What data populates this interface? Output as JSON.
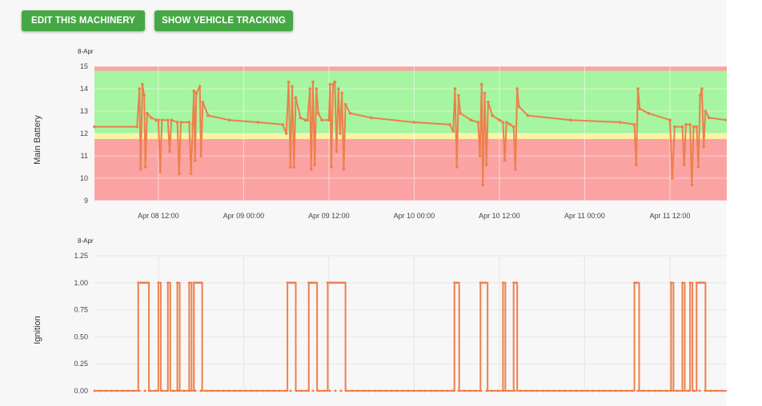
{
  "toolbar": {
    "edit_label": "EDIT THIS MACHINERY",
    "tracking_label": "SHOW VEHICLE TRACKING"
  },
  "colors": {
    "accent_button": "#45a845",
    "series": "#ee7f4c",
    "zone_good": "#a6f5a0",
    "zone_bad": "#fba3a3",
    "zone_warn": "#fbf3a4"
  },
  "chart_data": [
    {
      "type": "line",
      "title": "",
      "date_label": "8-Apr",
      "ylabel": "Main Battery",
      "xlabel": "",
      "ylim": [
        9,
        15
      ],
      "yticks": [
        "9",
        "10",
        "11",
        "12",
        "13",
        "14",
        "15"
      ],
      "xticks": [
        "Apr 08 12:00",
        "Apr 09 00:00",
        "Apr 09 12:00",
        "Apr 10 00:00",
        "Apr 10 12:00",
        "Apr 11 00:00",
        "Apr 11 12:00"
      ],
      "xlim": [
        "2024-04-08T03:00",
        "2024-04-11T20:00"
      ],
      "bands": [
        {
          "from": 9,
          "to": 11.75,
          "color": "#fba3a3"
        },
        {
          "from": 11.75,
          "to": 12.0,
          "color": "#fbf3a4"
        },
        {
          "from": 12.0,
          "to": 14.8,
          "color": "#a6f5a0"
        },
        {
          "from": 14.8,
          "to": 15,
          "color": "#fba3a3"
        }
      ],
      "series": [
        {
          "color": "#ee7f4c",
          "points": [
            [
              "2024-04-08T03:00",
              12.3
            ],
            [
              "2024-04-08T09:00",
              12.3
            ],
            [
              "2024-04-08T09:20",
              14.0
            ],
            [
              "2024-04-08T09:30",
              10.4
            ],
            [
              "2024-04-08T09:45",
              14.2
            ],
            [
              "2024-04-08T10:00",
              13.7
            ],
            [
              "2024-04-08T10:10",
              10.5
            ],
            [
              "2024-04-08T10:25",
              12.9
            ],
            [
              "2024-04-08T11:00",
              12.7
            ],
            [
              "2024-04-08T11:40",
              12.6
            ],
            [
              "2024-04-08T12:00",
              12.6
            ],
            [
              "2024-04-08T12:15",
              10.3
            ],
            [
              "2024-04-08T12:30",
              12.6
            ],
            [
              "2024-04-08T13:20",
              12.6
            ],
            [
              "2024-04-08T13:35",
              11.2
            ],
            [
              "2024-04-08T13:50",
              12.6
            ],
            [
              "2024-04-08T14:40",
              12.5
            ],
            [
              "2024-04-08T14:55",
              10.2
            ],
            [
              "2024-04-08T15:10",
              12.5
            ],
            [
              "2024-04-08T16:20",
              12.5
            ],
            [
              "2024-04-08T16:35",
              10.2
            ],
            [
              "2024-04-08T16:50",
              12.4
            ],
            [
              "2024-04-08T17:00",
              13.9
            ],
            [
              "2024-04-08T17:10",
              10.8
            ],
            [
              "2024-04-08T17:20",
              13.8
            ],
            [
              "2024-04-08T17:50",
              14.1
            ],
            [
              "2024-04-08T18:00",
              11.0
            ],
            [
              "2024-04-08T18:15",
              13.4
            ],
            [
              "2024-04-08T19:00",
              12.8
            ],
            [
              "2024-04-08T22:00",
              12.6
            ],
            [
              "2024-04-09T02:00",
              12.5
            ],
            [
              "2024-04-09T05:30",
              12.4
            ],
            [
              "2024-04-09T06:00",
              12.0
            ],
            [
              "2024-04-09T06:20",
              14.3
            ],
            [
              "2024-04-09T06:35",
              10.5
            ],
            [
              "2024-04-09T06:50",
              14.1
            ],
            [
              "2024-04-09T07:05",
              10.5
            ],
            [
              "2024-04-09T07:20",
              13.6
            ],
            [
              "2024-04-09T08:00",
              12.7
            ],
            [
              "2024-04-09T08:40",
              12.6
            ],
            [
              "2024-04-09T09:00",
              12.6
            ],
            [
              "2024-04-09T09:20",
              14.0
            ],
            [
              "2024-04-09T09:30",
              10.4
            ],
            [
              "2024-04-09T09:45",
              14.3
            ],
            [
              "2024-04-09T10:00",
              10.6
            ],
            [
              "2024-04-09T10:15",
              14.0
            ],
            [
              "2024-04-09T10:30",
              12.9
            ],
            [
              "2024-04-09T11:00",
              12.6
            ],
            [
              "2024-04-09T12:00",
              12.6
            ],
            [
              "2024-04-09T12:10",
              14.2
            ],
            [
              "2024-04-09T12:20",
              10.5
            ],
            [
              "2024-04-09T12:35",
              14.2
            ],
            [
              "2024-04-09T12:50",
              14.3
            ],
            [
              "2024-04-09T13:05",
              11.2
            ],
            [
              "2024-04-09T13:20",
              14.0
            ],
            [
              "2024-04-09T13:35",
              12.0
            ],
            [
              "2024-04-09T13:50",
              13.8
            ],
            [
              "2024-04-09T14:05",
              10.4
            ],
            [
              "2024-04-09T14:20",
              13.3
            ],
            [
              "2024-04-09T15:00",
              12.9
            ],
            [
              "2024-04-09T18:00",
              12.7
            ],
            [
              "2024-04-10T00:00",
              12.5
            ],
            [
              "2024-04-10T05:00",
              12.4
            ],
            [
              "2024-04-10T05:30",
              12.1
            ],
            [
              "2024-04-10T05:45",
              14.0
            ],
            [
              "2024-04-10T06:00",
              10.5
            ],
            [
              "2024-04-10T06:15",
              13.7
            ],
            [
              "2024-04-10T06:30",
              12.9
            ],
            [
              "2024-04-10T08:00",
              12.6
            ],
            [
              "2024-04-10T09:00",
              12.5
            ],
            [
              "2024-04-10T09:15",
              11.0
            ],
            [
              "2024-04-10T09:30",
              14.2
            ],
            [
              "2024-04-10T09:40",
              9.7
            ],
            [
              "2024-04-10T09:55",
              13.8
            ],
            [
              "2024-04-10T10:10",
              10.6
            ],
            [
              "2024-04-10T10:25",
              13.4
            ],
            [
              "2024-04-10T11:00",
              12.8
            ],
            [
              "2024-04-10T12:00",
              12.6
            ],
            [
              "2024-04-10T12:30",
              12.5
            ],
            [
              "2024-04-10T12:45",
              10.8
            ],
            [
              "2024-04-10T13:00",
              12.5
            ],
            [
              "2024-04-10T13:30",
              12.4
            ],
            [
              "2024-04-10T14:00",
              12.3
            ],
            [
              "2024-04-10T14:15",
              10.4
            ],
            [
              "2024-04-10T14:30",
              14.0
            ],
            [
              "2024-04-10T14:45",
              13.2
            ],
            [
              "2024-04-10T16:00",
              12.8
            ],
            [
              "2024-04-10T22:00",
              12.6
            ],
            [
              "2024-04-11T05:00",
              12.5
            ],
            [
              "2024-04-11T07:00",
              12.4
            ],
            [
              "2024-04-11T07:15",
              10.6
            ],
            [
              "2024-04-11T07:30",
              14.0
            ],
            [
              "2024-04-11T07:45",
              13.1
            ],
            [
              "2024-04-11T09:00",
              12.9
            ],
            [
              "2024-04-11T12:00",
              12.6
            ],
            [
              "2024-04-11T12:20",
              10.0
            ],
            [
              "2024-04-11T12:40",
              12.3
            ],
            [
              "2024-04-11T13:45",
              12.3
            ],
            [
              "2024-04-11T14:00",
              10.6
            ],
            [
              "2024-04-11T14:15",
              12.4
            ],
            [
              "2024-04-11T14:50",
              12.4
            ],
            [
              "2024-04-11T15:05",
              9.7
            ],
            [
              "2024-04-11T15:20",
              12.3
            ],
            [
              "2024-04-11T15:45",
              12.3
            ],
            [
              "2024-04-11T16:00",
              10.5
            ],
            [
              "2024-04-11T16:15",
              13.7
            ],
            [
              "2024-04-11T16:30",
              14.0
            ],
            [
              "2024-04-11T16:45",
              11.4
            ],
            [
              "2024-04-11T17:00",
              13.0
            ],
            [
              "2024-04-11T17:30",
              12.7
            ],
            [
              "2024-04-11T20:00",
              12.6
            ]
          ]
        }
      ]
    },
    {
      "type": "line",
      "title": "",
      "date_label": "8-Apr",
      "ylabel": "Ignition",
      "xlabel": "",
      "ylim": [
        0,
        1.25
      ],
      "yticks": [
        "0.00",
        "0.25",
        "0.50",
        "0.75",
        "1.00",
        "1.25"
      ],
      "xlim": [
        "2024-04-08T03:00",
        "2024-04-11T20:00"
      ],
      "series": [
        {
          "color": "#ee7f4c",
          "on_intervals": [
            [
              "2024-04-08T09:10",
              "2024-04-08T10:40"
            ],
            [
              "2024-04-08T12:00",
              "2024-04-08T12:20"
            ],
            [
              "2024-04-08T13:20",
              "2024-04-08T13:40"
            ],
            [
              "2024-04-08T14:40",
              "2024-04-08T15:00"
            ],
            [
              "2024-04-08T16:20",
              "2024-04-08T16:40"
            ],
            [
              "2024-04-08T17:00",
              "2024-04-08T18:10"
            ],
            [
              "2024-04-09T06:10",
              "2024-04-09T07:20"
            ],
            [
              "2024-04-09T09:10",
              "2024-04-09T10:20"
            ],
            [
              "2024-04-09T11:50",
              "2024-04-09T14:20"
            ],
            [
              "2024-04-10T05:40",
              "2024-04-10T06:20"
            ],
            [
              "2024-04-10T09:20",
              "2024-04-10T10:20"
            ],
            [
              "2024-04-10T12:30",
              "2024-04-10T12:50"
            ],
            [
              "2024-04-10T14:00",
              "2024-04-10T14:30"
            ],
            [
              "2024-04-11T07:00",
              "2024-04-11T07:40"
            ],
            [
              "2024-04-11T12:10",
              "2024-04-11T12:30"
            ],
            [
              "2024-04-11T13:45",
              "2024-04-11T14:05"
            ],
            [
              "2024-04-11T14:50",
              "2024-04-11T15:10"
            ],
            [
              "2024-04-11T15:45",
              "2024-04-11T17:00"
            ]
          ]
        }
      ]
    }
  ]
}
